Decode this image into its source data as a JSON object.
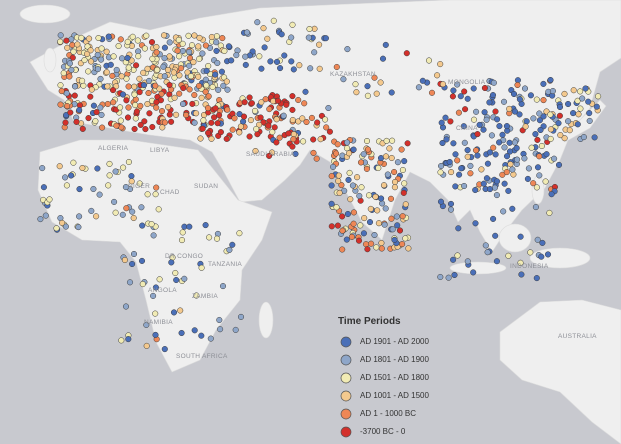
{
  "map": {
    "legend": {
      "title": "Time Periods",
      "items": [
        {
          "label": "AD 1901 - AD 2000",
          "color": "#4a6fb8"
        },
        {
          "label": "AD 1801 - AD 1900",
          "color": "#8ea6c9"
        },
        {
          "label": "AD 1501 - AD 1800",
          "color": "#f1ebb4"
        },
        {
          "label": "AD 1001 - AD 1500",
          "color": "#f4c98e"
        },
        {
          "label": "AD 1 - 1000 BC",
          "color": "#ee8756"
        },
        {
          "label": "-3700 BC - 0",
          "color": "#d3302b"
        }
      ]
    },
    "labels": [
      "ALGERIA",
      "LIBYA",
      "NIGER",
      "CHAD",
      "SUDAN",
      "SAUDI ARABIA",
      "KAZAKHSTAN",
      "MONGOLIA",
      "CHINA",
      "DR CONGO",
      "TANZANIA",
      "ANGOLA",
      "ZAMBIA",
      "NAMIBIA",
      "SOUTH AFRICA",
      "INDONESIA",
      "AUSTRALIA"
    ]
  }
}
